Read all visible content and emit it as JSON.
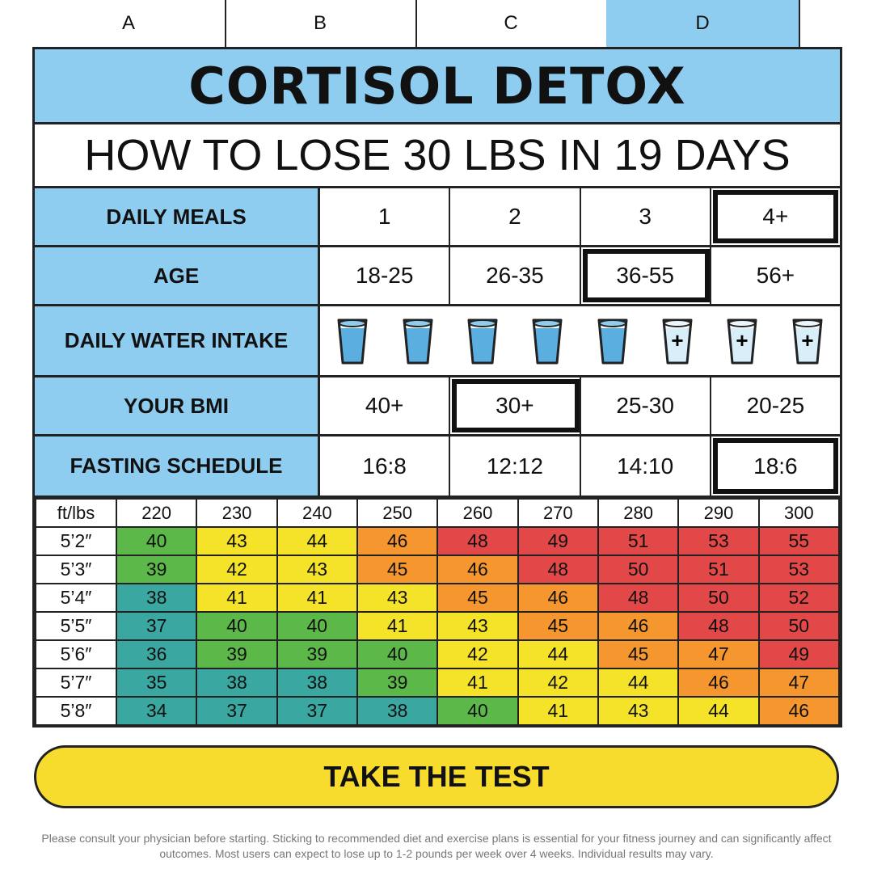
{
  "columns": [
    {
      "label": "A",
      "active": false
    },
    {
      "label": "B",
      "active": false
    },
    {
      "label": "C",
      "active": false
    },
    {
      "label": "D",
      "active": true
    }
  ],
  "title": "CORTISOL DETOX",
  "subtitle": "HOW TO LOSE 30 LBS IN 19 DAYS",
  "questions": [
    {
      "label": "DAILY MEALS",
      "options": [
        "1",
        "2",
        "3",
        "4+"
      ],
      "selected": 3
    },
    {
      "label": "AGE",
      "options": [
        "18-25",
        "26-35",
        "36-55",
        "56+"
      ],
      "selected": 2
    },
    {
      "label": "DAILY WATER INTAKE",
      "glasses": [
        {
          "icon": "water-glass-icon",
          "mark": "",
          "filled": true
        },
        {
          "icon": "water-glass-icon",
          "mark": "",
          "filled": true
        },
        {
          "icon": "water-glass-icon",
          "mark": "",
          "filled": true
        },
        {
          "icon": "water-glass-icon",
          "mark": "",
          "filled": true
        },
        {
          "icon": "water-glass-icon",
          "mark": "",
          "filled": true
        },
        {
          "icon": "water-glass-plus-icon",
          "mark": "+",
          "filled": false
        },
        {
          "icon": "water-glass-plus-icon",
          "mark": "+",
          "filled": false
        },
        {
          "icon": "water-glass-plus-icon",
          "mark": "+",
          "filled": false
        }
      ]
    },
    {
      "label": "YOUR BMI",
      "options": [
        "40+",
        "30+",
        "25-30",
        "20-25"
      ],
      "selected": 1
    },
    {
      "label": "FASTING SCHEDULE",
      "options": [
        "16:8",
        "12:12",
        "14:10",
        "18:6"
      ],
      "selected": 3
    }
  ],
  "bmi_table": {
    "corner": "ft/lbs",
    "weights": [
      "220",
      "230",
      "240",
      "250",
      "260",
      "270",
      "280",
      "290",
      "300"
    ],
    "rows": [
      {
        "height": "5’2″",
        "values": [
          40,
          43,
          44,
          46,
          48,
          49,
          51,
          53,
          55
        ]
      },
      {
        "height": "5’3″",
        "values": [
          39,
          42,
          43,
          45,
          46,
          48,
          50,
          51,
          53
        ]
      },
      {
        "height": "5’4″",
        "values": [
          38,
          41,
          41,
          43,
          45,
          46,
          48,
          50,
          52
        ]
      },
      {
        "height": "5’5″",
        "values": [
          37,
          40,
          40,
          41,
          43,
          45,
          46,
          48,
          50
        ]
      },
      {
        "height": "5’6″",
        "values": [
          36,
          39,
          39,
          40,
          42,
          44,
          45,
          47,
          49
        ]
      },
      {
        "height": "5’7″",
        "values": [
          35,
          38,
          38,
          39,
          41,
          42,
          44,
          46,
          47
        ]
      },
      {
        "height": "5’8″",
        "values": [
          34,
          37,
          37,
          38,
          40,
          41,
          43,
          44,
          46
        ]
      }
    ],
    "colors": {
      "teal": "#3aa8a0",
      "green": "#5cb848",
      "yellow": "#f5e32a",
      "orange": "#f5962e",
      "red": "#e24848"
    }
  },
  "cta_label": "TAKE THE TEST",
  "disclaimer": "Please consult your physician before starting. Sticking to recommended diet and exercise plans is essential for your fitness journey and can significantly affect outcomes. Most users can expect to lose up to 1-2 pounds per week over 4 weeks. Individual results may vary."
}
